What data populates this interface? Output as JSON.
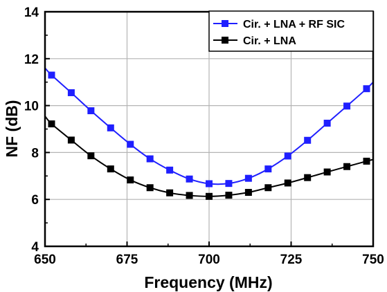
{
  "chart_data": {
    "type": "line",
    "xlabel": "Frequency (MHz)",
    "ylabel": "NF (dB)",
    "xlim": [
      650,
      750
    ],
    "ylim": [
      4,
      14
    ],
    "xticks": [
      650,
      675,
      700,
      725,
      750
    ],
    "yticks": [
      4,
      6,
      8,
      10,
      12,
      14
    ],
    "grid": true,
    "legend_position": "top-right",
    "series": [
      {
        "name": "Cir. + LNA + RF SIC",
        "color": "#1f1fff",
        "marker": "square",
        "x": [
          650,
          652,
          658,
          664,
          670,
          676,
          682,
          688,
          694,
          700,
          706,
          712,
          718,
          724,
          730,
          736,
          742,
          748,
          750
        ],
        "y": [
          11.6,
          11.3,
          10.55,
          9.78,
          9.05,
          8.35,
          7.73,
          7.25,
          6.87,
          6.67,
          6.68,
          6.9,
          7.3,
          7.85,
          8.52,
          9.25,
          9.98,
          10.72,
          11.0
        ]
      },
      {
        "name": "Cir. + LNA",
        "color": "#000000",
        "marker": "square",
        "x": [
          650,
          652,
          658,
          664,
          670,
          676,
          682,
          688,
          694,
          700,
          706,
          712,
          718,
          724,
          730,
          736,
          742,
          748,
          750
        ],
        "y": [
          9.55,
          9.22,
          8.53,
          7.86,
          7.3,
          6.83,
          6.5,
          6.28,
          6.17,
          6.13,
          6.18,
          6.3,
          6.5,
          6.7,
          6.93,
          7.17,
          7.4,
          7.63,
          7.7
        ]
      }
    ]
  }
}
